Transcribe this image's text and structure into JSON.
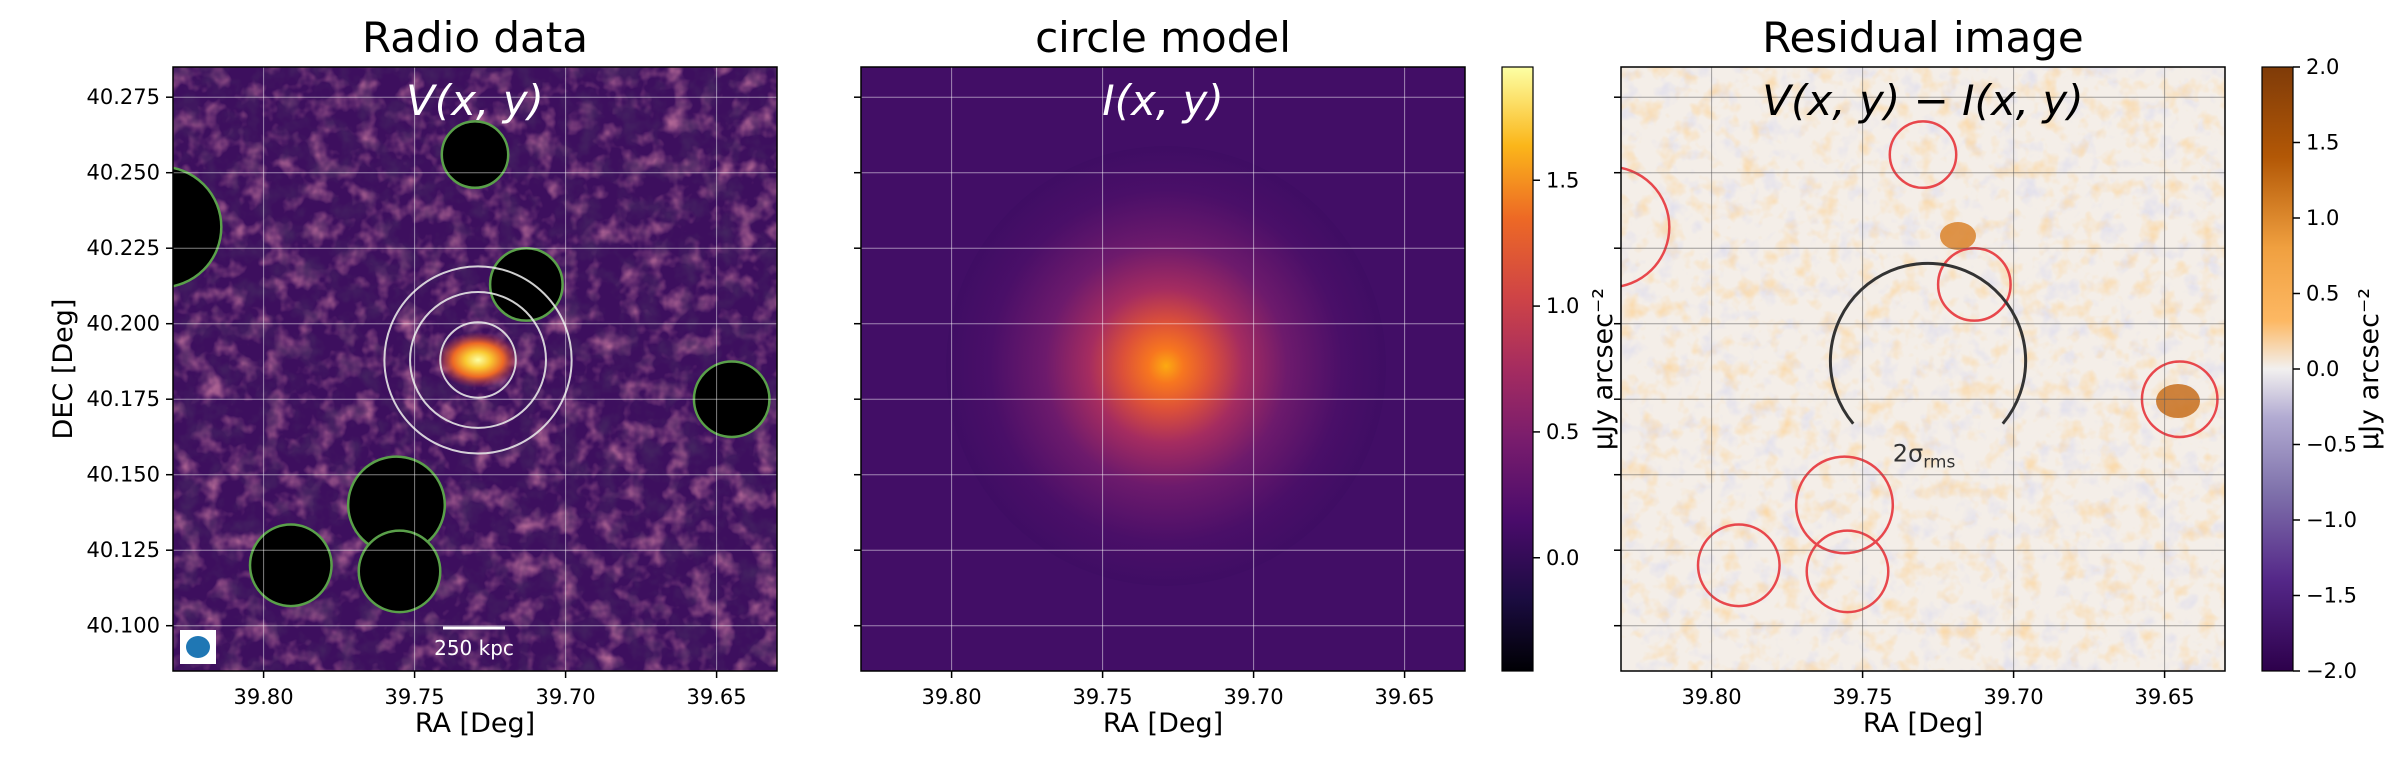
{
  "chart_data": [
    {
      "type": "heatmap",
      "title": "Radio data",
      "annotation": "V(x, y)",
      "xlabel": "RA [Deg]",
      "ylabel": "DEC [Deg]",
      "xlim": [
        39.83,
        39.63
      ],
      "ylim": [
        40.085,
        40.285
      ],
      "xticks": [
        "39.80",
        "39.75",
        "39.70",
        "39.65"
      ],
      "yticks": [
        "40.100",
        "40.125",
        "40.150",
        "40.175",
        "40.200",
        "40.225",
        "40.250",
        "40.275"
      ],
      "colormap": "inferno",
      "grid": true,
      "scalebar_label": "250 kpc",
      "source_center": [
        39.729,
        40.188
      ],
      "masked_regions": [
        {
          "ra": 39.73,
          "dec": 40.256,
          "r": 0.011
        },
        {
          "ra": 39.713,
          "dec": 40.213,
          "r": 0.012
        },
        {
          "ra": 39.834,
          "dec": 40.232,
          "r": 0.02
        },
        {
          "ra": 39.645,
          "dec": 40.175,
          "r": 0.0125
        },
        {
          "ra": 39.756,
          "dec": 40.14,
          "r": 0.016
        },
        {
          "ra": 39.755,
          "dec": 40.118,
          "r": 0.0135
        },
        {
          "ra": 39.791,
          "dec": 40.12,
          "r": 0.0135
        }
      ],
      "rings_radii_deg": [
        0.0125,
        0.0225,
        0.031
      ]
    },
    {
      "type": "heatmap",
      "title": "circle model",
      "annotation": "I(x, y)",
      "xlabel": "RA [Deg]",
      "xlim": [
        39.83,
        39.63
      ],
      "ylim": [
        40.085,
        40.285
      ],
      "xticks": [
        "39.80",
        "39.75",
        "39.70",
        "39.65"
      ],
      "colormap": "inferno",
      "grid": true,
      "model_center": [
        39.729,
        40.186
      ],
      "colorbar": {
        "label": "μJy arcsec⁻²",
        "range": [
          -0.45,
          1.95
        ],
        "ticks": [
          0.0,
          0.5,
          1.0,
          1.5
        ],
        "tick_labels": [
          "0.0",
          "0.5",
          "1.0",
          "1.5"
        ]
      }
    },
    {
      "type": "heatmap",
      "title": "Residual image",
      "annotation": "V(x, y) − I(x, y)",
      "xlabel": "RA [Deg]",
      "xlim": [
        39.83,
        39.63
      ],
      "ylim": [
        40.085,
        40.285
      ],
      "xticks": [
        "39.80",
        "39.75",
        "39.70",
        "39.65"
      ],
      "colormap": "PuOr_r",
      "grid": true,
      "contour_label": "2σ",
      "contour_label_sub": "rms",
      "colorbar": {
        "label": "μJy arcsec⁻²",
        "range": [
          -2.0,
          2.0
        ],
        "ticks": [
          2.0,
          1.5,
          1.0,
          0.5,
          0.0,
          -0.5,
          -1.0,
          -1.5,
          -2.0
        ],
        "tick_labels": [
          "2.0",
          "1.5",
          "1.0",
          "0.5",
          "0.0",
          "−0.5",
          "−1.0",
          "−1.5",
          "−2.0"
        ]
      }
    }
  ]
}
